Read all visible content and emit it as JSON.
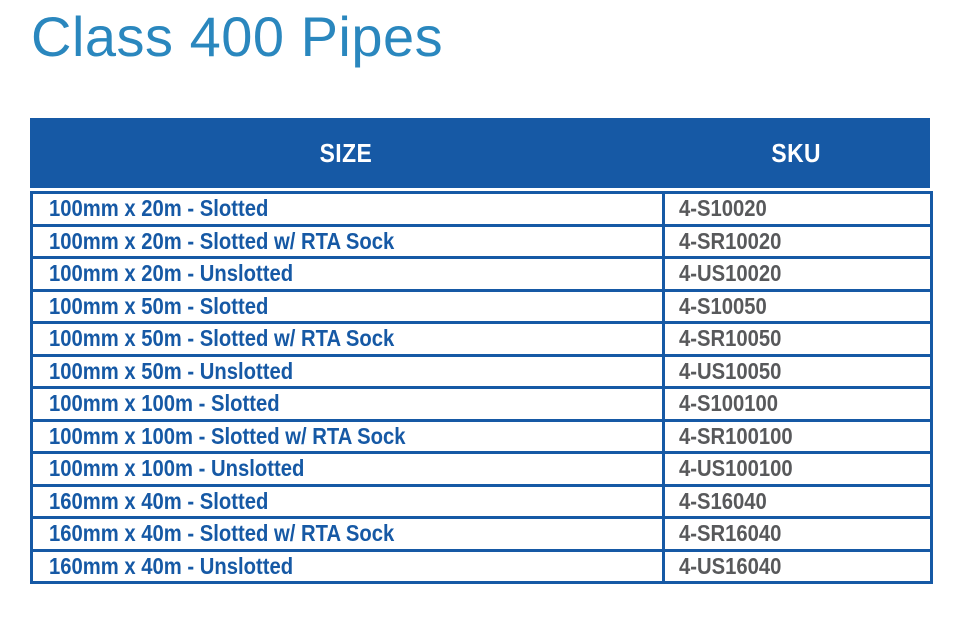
{
  "page": {
    "title": "Class 400 Pipes"
  },
  "colors": {
    "primary_blue": "#1659A5",
    "title_blue": "#2A87BE",
    "sku_gray": "#58595B"
  },
  "table": {
    "columns": [
      {
        "label": "SIZE"
      },
      {
        "label": "SKU"
      }
    ],
    "rows": [
      {
        "size": "100mm x 20m - Slotted",
        "sku": "4-S10020"
      },
      {
        "size": "100mm x 20m - Slotted w/ RTA Sock",
        "sku": "4-SR10020"
      },
      {
        "size": "100mm x 20m - Unslotted",
        "sku": "4-US10020"
      },
      {
        "size": "100mm x 50m - Slotted",
        "sku": "4-S10050"
      },
      {
        "size": "100mm x 50m - Slotted w/ RTA Sock",
        "sku": "4-SR10050"
      },
      {
        "size": "100mm x 50m - Unslotted",
        "sku": "4-US10050"
      },
      {
        "size": "100mm x 100m - Slotted",
        "sku": "4-S100100"
      },
      {
        "size": "100mm x 100m - Slotted w/ RTA Sock",
        "sku": "4-SR100100"
      },
      {
        "size": "100mm x 100m - Unslotted",
        "sku": "4-US100100"
      },
      {
        "size": "160mm x 40m - Slotted",
        "sku": "4-S16040"
      },
      {
        "size": "160mm x 40m - Slotted w/ RTA Sock",
        "sku": "4-SR16040"
      },
      {
        "size": "160mm x 40m - Unslotted",
        "sku": "4-US16040"
      }
    ]
  }
}
